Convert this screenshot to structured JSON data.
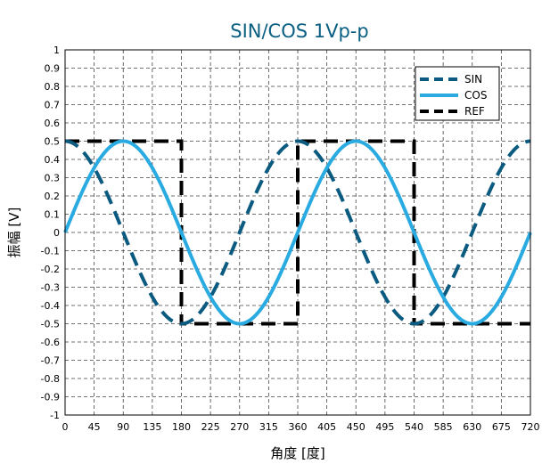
{
  "chart_data": {
    "type": "line",
    "title": "SIN/COS 1Vp-p",
    "xlabel": "角度 [度]",
    "ylabel": "振幅 [V]",
    "xlim": [
      0,
      720
    ],
    "ylim": [
      -1,
      1
    ],
    "x_ticks": [
      "0",
      "45",
      "90",
      "135",
      "180",
      "225",
      "270",
      "315",
      "360",
      "405",
      "450",
      "495",
      "540",
      "585",
      "630",
      "675",
      "720"
    ],
    "y_ticks": [
      "1",
      "0.9",
      "0.8",
      "0.7",
      "0.6",
      "0.5",
      "0.4",
      "0.3",
      "0.2",
      "0.1",
      "0",
      "-0.1",
      "-0.2",
      "-0.3",
      "-0.4",
      "-0.5",
      "-0.6",
      "-0.7",
      "-0.8",
      "-0.9",
      "-1"
    ],
    "grid": true,
    "legend_position": "top-right",
    "x": [
      0,
      45,
      90,
      135,
      180,
      225,
      270,
      315,
      360,
      405,
      450,
      495,
      540,
      585,
      630,
      675,
      720
    ],
    "series": [
      {
        "name": "SIN",
        "color": "#0b5a80",
        "dash": "dashed",
        "values": [
          0.5,
          0.354,
          0,
          -0.354,
          -0.5,
          -0.354,
          0,
          0.354,
          0.5,
          0.354,
          0,
          -0.354,
          -0.5,
          -0.354,
          0,
          0.354,
          0.5
        ]
      },
      {
        "name": "COS",
        "color": "#29abe2",
        "dash": "solid",
        "values": [
          0,
          0.354,
          0.5,
          0.354,
          0,
          -0.354,
          -0.5,
          -0.354,
          0,
          0.354,
          0.5,
          0.354,
          0,
          -0.354,
          -0.5,
          -0.354,
          0
        ]
      },
      {
        "name": "REF",
        "color": "#000000",
        "dash": "dashed",
        "points": [
          [
            0,
            0.5
          ],
          [
            180,
            0.5
          ],
          [
            180,
            -0.5
          ],
          [
            360,
            -0.5
          ],
          [
            360,
            0.5
          ],
          [
            540,
            0.5
          ],
          [
            540,
            -0.5
          ],
          [
            720,
            -0.5
          ]
        ]
      }
    ]
  }
}
